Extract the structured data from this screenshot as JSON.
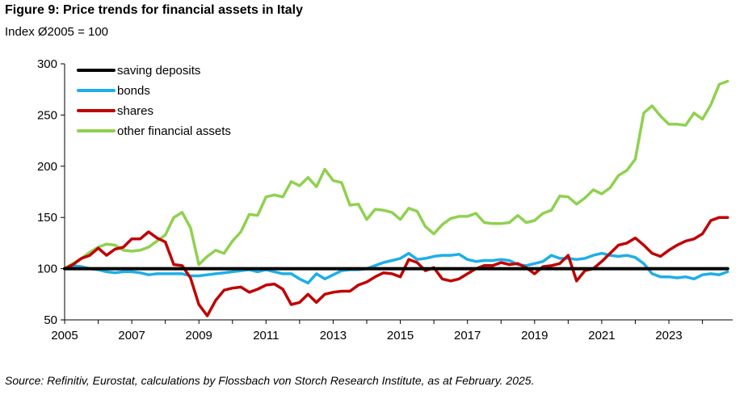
{
  "title": "Figure 9: Price trends for financial assets in Italy",
  "subtitle": "Index Ø2005 = 100",
  "source": "Source: Refinitiv, Eurostat, calculations by Flossbach von Storch Research Institute, as at February. 2025.",
  "chart_data": {
    "type": "line",
    "title": "Figure 9: Price trends for financial assets in Italy",
    "subtitle": "Index Ø2005 = 100",
    "xlim": [
      2005,
      2024.9
    ],
    "ylim": [
      50,
      300
    ],
    "x_ticks": [
      "2005",
      "2007",
      "2009",
      "2011",
      "2013",
      "2015",
      "2017",
      "2019",
      "2021",
      "2023"
    ],
    "x_tick_values": [
      2005,
      2007,
      2009,
      2011,
      2013,
      2015,
      2017,
      2019,
      2021,
      2023
    ],
    "y_ticks": [
      "50",
      "100",
      "150",
      "200",
      "250",
      "300"
    ],
    "y_tick_values": [
      50,
      100,
      150,
      200,
      250,
      300
    ],
    "grid": false,
    "legend_position": "top-left",
    "series": [
      {
        "name": "saving deposits",
        "color": "#000000",
        "points": [
          [
            2005,
            100
          ],
          [
            2024.75,
            100
          ]
        ]
      },
      {
        "name": "bonds",
        "color": "#1eaee8",
        "points": [
          [
            2005.0,
            100
          ],
          [
            2005.25,
            103
          ],
          [
            2005.5,
            102
          ],
          [
            2005.75,
            100
          ],
          [
            2006.0,
            99
          ],
          [
            2006.25,
            97
          ],
          [
            2006.5,
            96
          ],
          [
            2006.75,
            97
          ],
          [
            2007.0,
            97
          ],
          [
            2007.25,
            96
          ],
          [
            2007.5,
            94
          ],
          [
            2007.75,
            95
          ],
          [
            2008.0,
            95
          ],
          [
            2008.25,
            95
          ],
          [
            2008.5,
            95
          ],
          [
            2008.75,
            93
          ],
          [
            2009.0,
            93
          ],
          [
            2009.25,
            94
          ],
          [
            2009.5,
            95
          ],
          [
            2009.75,
            96
          ],
          [
            2010.0,
            97
          ],
          [
            2010.25,
            98
          ],
          [
            2010.5,
            99
          ],
          [
            2010.75,
            97
          ],
          [
            2011.0,
            99
          ],
          [
            2011.25,
            97
          ],
          [
            2011.5,
            95
          ],
          [
            2011.75,
            95
          ],
          [
            2012.0,
            90
          ],
          [
            2012.25,
            86
          ],
          [
            2012.5,
            95
          ],
          [
            2012.75,
            90
          ],
          [
            2013.0,
            94
          ],
          [
            2013.25,
            98
          ],
          [
            2013.5,
            99
          ],
          [
            2013.75,
            99
          ],
          [
            2014.0,
            100
          ],
          [
            2014.25,
            103
          ],
          [
            2014.5,
            106
          ],
          [
            2014.75,
            108
          ],
          [
            2015.0,
            110
          ],
          [
            2015.25,
            115
          ],
          [
            2015.5,
            109
          ],
          [
            2015.75,
            110
          ],
          [
            2016.0,
            112
          ],
          [
            2016.25,
            113
          ],
          [
            2016.5,
            113
          ],
          [
            2016.75,
            114
          ],
          [
            2017.0,
            109
          ],
          [
            2017.25,
            107
          ],
          [
            2017.5,
            108
          ],
          [
            2017.75,
            108
          ],
          [
            2018.0,
            109
          ],
          [
            2018.25,
            108
          ],
          [
            2018.5,
            104
          ],
          [
            2018.75,
            103
          ],
          [
            2019.0,
            105
          ],
          [
            2019.25,
            107
          ],
          [
            2019.5,
            113
          ],
          [
            2019.75,
            110
          ],
          [
            2020.0,
            110
          ],
          [
            2020.25,
            109
          ],
          [
            2020.5,
            110
          ],
          [
            2020.75,
            113
          ],
          [
            2021.0,
            115
          ],
          [
            2021.25,
            113
          ],
          [
            2021.5,
            112
          ],
          [
            2021.75,
            113
          ],
          [
            2022.0,
            111
          ],
          [
            2022.25,
            105
          ],
          [
            2022.5,
            95
          ],
          [
            2022.75,
            92
          ],
          [
            2023.0,
            92
          ],
          [
            2023.25,
            91
          ],
          [
            2023.5,
            92
          ],
          [
            2023.75,
            90
          ],
          [
            2024.0,
            94
          ],
          [
            2024.25,
            95
          ],
          [
            2024.5,
            94
          ],
          [
            2024.75,
            97
          ]
        ]
      },
      {
        "name": "shares",
        "color": "#c00000",
        "points": [
          [
            2005.0,
            100
          ],
          [
            2005.25,
            104
          ],
          [
            2005.5,
            110
          ],
          [
            2005.75,
            113
          ],
          [
            2006.0,
            120
          ],
          [
            2006.25,
            113
          ],
          [
            2006.5,
            119
          ],
          [
            2006.75,
            121
          ],
          [
            2007.0,
            129
          ],
          [
            2007.25,
            129
          ],
          [
            2007.5,
            136
          ],
          [
            2007.75,
            130
          ],
          [
            2008.0,
            126
          ],
          [
            2008.25,
            104
          ],
          [
            2008.5,
            103
          ],
          [
            2008.75,
            91
          ],
          [
            2009.0,
            65
          ],
          [
            2009.25,
            54
          ],
          [
            2009.5,
            69
          ],
          [
            2009.75,
            79
          ],
          [
            2010.0,
            81
          ],
          [
            2010.25,
            82
          ],
          [
            2010.5,
            77
          ],
          [
            2010.75,
            80
          ],
          [
            2011.0,
            84
          ],
          [
            2011.25,
            85
          ],
          [
            2011.5,
            80
          ],
          [
            2011.75,
            65
          ],
          [
            2012.0,
            67
          ],
          [
            2012.25,
            75
          ],
          [
            2012.5,
            67
          ],
          [
            2012.75,
            75
          ],
          [
            2013.0,
            77
          ],
          [
            2013.25,
            78
          ],
          [
            2013.5,
            78
          ],
          [
            2013.75,
            84
          ],
          [
            2014.0,
            87
          ],
          [
            2014.25,
            92
          ],
          [
            2014.5,
            96
          ],
          [
            2014.75,
            95
          ],
          [
            2015.0,
            92
          ],
          [
            2015.25,
            109
          ],
          [
            2015.5,
            106
          ],
          [
            2015.75,
            98
          ],
          [
            2016.0,
            101
          ],
          [
            2016.25,
            90
          ],
          [
            2016.5,
            88
          ],
          [
            2016.75,
            90
          ],
          [
            2017.0,
            95
          ],
          [
            2017.25,
            100
          ],
          [
            2017.5,
            103
          ],
          [
            2017.75,
            103
          ],
          [
            2018.0,
            106
          ],
          [
            2018.25,
            104
          ],
          [
            2018.5,
            105
          ],
          [
            2018.75,
            101
          ],
          [
            2019.0,
            95
          ],
          [
            2019.25,
            102
          ],
          [
            2019.5,
            103
          ],
          [
            2019.75,
            105
          ],
          [
            2020.0,
            113
          ],
          [
            2020.25,
            88
          ],
          [
            2020.5,
            98
          ],
          [
            2020.75,
            100
          ],
          [
            2021.0,
            107
          ],
          [
            2021.25,
            115
          ],
          [
            2021.5,
            123
          ],
          [
            2021.75,
            125
          ],
          [
            2022.0,
            130
          ],
          [
            2022.25,
            123
          ],
          [
            2022.5,
            115
          ],
          [
            2022.75,
            112
          ],
          [
            2023.0,
            118
          ],
          [
            2023.25,
            123
          ],
          [
            2023.5,
            127
          ],
          [
            2023.75,
            129
          ],
          [
            2024.0,
            134
          ],
          [
            2024.25,
            147
          ],
          [
            2024.5,
            150
          ],
          [
            2024.75,
            150
          ]
        ]
      },
      {
        "name": "other financial assets",
        "color": "#8fd14f",
        "points": [
          [
            2005.0,
            100
          ],
          [
            2005.25,
            105
          ],
          [
            2005.5,
            110
          ],
          [
            2005.75,
            116
          ],
          [
            2006.0,
            121
          ],
          [
            2006.25,
            124
          ],
          [
            2006.5,
            123
          ],
          [
            2006.75,
            118
          ],
          [
            2007.0,
            117
          ],
          [
            2007.25,
            118
          ],
          [
            2007.5,
            121
          ],
          [
            2007.75,
            127
          ],
          [
            2008.0,
            133
          ],
          [
            2008.25,
            150
          ],
          [
            2008.5,
            155
          ],
          [
            2008.75,
            140
          ],
          [
            2009.0,
            104
          ],
          [
            2009.25,
            112
          ],
          [
            2009.5,
            118
          ],
          [
            2009.75,
            115
          ],
          [
            2010.0,
            127
          ],
          [
            2010.25,
            136
          ],
          [
            2010.5,
            153
          ],
          [
            2010.75,
            152
          ],
          [
            2011.0,
            170
          ],
          [
            2011.25,
            172
          ],
          [
            2011.5,
            170
          ],
          [
            2011.75,
            185
          ],
          [
            2012.0,
            181
          ],
          [
            2012.25,
            189
          ],
          [
            2012.5,
            180
          ],
          [
            2012.75,
            197
          ],
          [
            2013.0,
            186
          ],
          [
            2013.25,
            184
          ],
          [
            2013.5,
            162
          ],
          [
            2013.75,
            163
          ],
          [
            2014.0,
            148
          ],
          [
            2014.25,
            158
          ],
          [
            2014.5,
            157
          ],
          [
            2014.75,
            155
          ],
          [
            2015.0,
            148
          ],
          [
            2015.25,
            159
          ],
          [
            2015.5,
            156
          ],
          [
            2015.75,
            141
          ],
          [
            2016.0,
            134
          ],
          [
            2016.25,
            143
          ],
          [
            2016.5,
            149
          ],
          [
            2016.75,
            151
          ],
          [
            2017.0,
            151
          ],
          [
            2017.25,
            154
          ],
          [
            2017.5,
            145
          ],
          [
            2017.75,
            144
          ],
          [
            2018.0,
            144
          ],
          [
            2018.25,
            145
          ],
          [
            2018.5,
            152
          ],
          [
            2018.75,
            145
          ],
          [
            2019.0,
            147
          ],
          [
            2019.25,
            154
          ],
          [
            2019.5,
            157
          ],
          [
            2019.75,
            171
          ],
          [
            2020.0,
            170
          ],
          [
            2020.25,
            163
          ],
          [
            2020.5,
            169
          ],
          [
            2020.75,
            177
          ],
          [
            2021.0,
            173
          ],
          [
            2021.25,
            179
          ],
          [
            2021.5,
            191
          ],
          [
            2021.75,
            196
          ],
          [
            2022.0,
            207
          ],
          [
            2022.25,
            252
          ],
          [
            2022.5,
            259
          ],
          [
            2022.75,
            249
          ],
          [
            2023.0,
            241
          ],
          [
            2023.25,
            241
          ],
          [
            2023.5,
            240
          ],
          [
            2023.75,
            252
          ],
          [
            2024.0,
            246
          ],
          [
            2024.25,
            260
          ],
          [
            2024.5,
            280
          ],
          [
            2024.75,
            283
          ]
        ]
      }
    ]
  }
}
